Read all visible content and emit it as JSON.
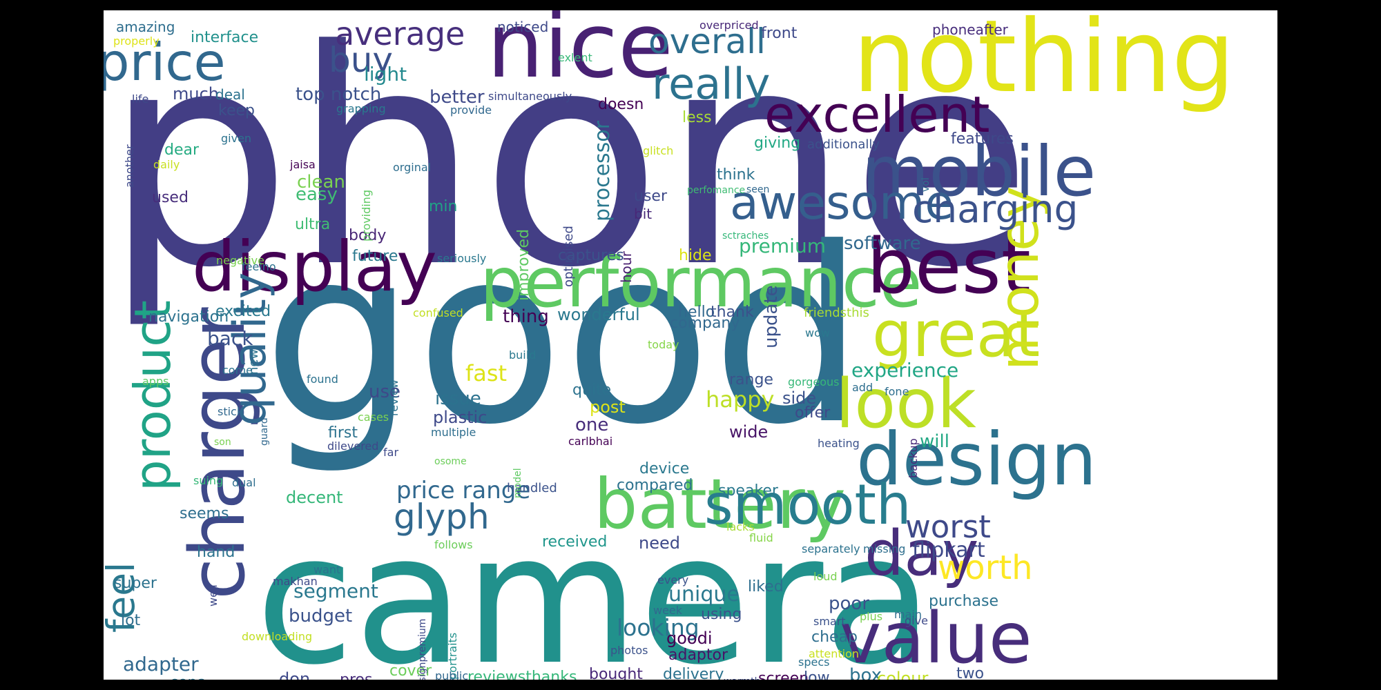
{
  "canvas": {
    "background": "#ffffff",
    "frame": "#000000"
  },
  "words": [
    {
      "text": "phone",
      "color": "#433e85"
    },
    {
      "text": "good",
      "color": "#2e6f8e"
    },
    {
      "text": "camera",
      "color": "#21918c"
    },
    {
      "text": "nothing",
      "color": "#e2e418"
    },
    {
      "text": "nice",
      "color": "#482173"
    },
    {
      "text": "performance",
      "color": "#5ec962"
    },
    {
      "text": "display",
      "color": "#440154"
    },
    {
      "text": "best",
      "color": "#440154"
    },
    {
      "text": "mobile",
      "color": "#3b528b"
    },
    {
      "text": "design",
      "color": "#2c728e"
    },
    {
      "text": "battery",
      "color": "#5ec962"
    },
    {
      "text": "charger",
      "color": "#3e4989"
    },
    {
      "text": "value",
      "color": "#472d7b"
    },
    {
      "text": "great",
      "color": "#c8e020"
    },
    {
      "text": "look",
      "color": "#bddf26"
    },
    {
      "text": "money",
      "color": "#d0e11c"
    },
    {
      "text": "smooth",
      "color": "#287d8e"
    },
    {
      "text": "price",
      "color": "#31688e"
    },
    {
      "text": "excellent",
      "color": "#440154"
    },
    {
      "text": "awesome",
      "color": "#355f8d"
    },
    {
      "text": "charging",
      "color": "#3b528b"
    },
    {
      "text": "quality",
      "color": "#31688e"
    },
    {
      "text": "product",
      "color": "#20a386"
    },
    {
      "text": "day",
      "color": "#472d7b"
    },
    {
      "text": "really",
      "color": "#2c728e"
    },
    {
      "text": "overall",
      "color": "#2e6e8e"
    },
    {
      "text": "average",
      "color": "#472f7d"
    },
    {
      "text": "buy",
      "color": "#3b528b"
    },
    {
      "text": "worth",
      "color": "#fde725"
    },
    {
      "text": "worst",
      "color": "#3e4989"
    },
    {
      "text": "feel",
      "color": "#2a788e"
    },
    {
      "text": "glyph",
      "color": "#31688e"
    },
    {
      "text": "price range",
      "color": "#31688e"
    },
    {
      "text": "flipkart",
      "color": "#3e4989"
    },
    {
      "text": "fast",
      "color": "#dde318"
    },
    {
      "text": "premium",
      "color": "#35b779"
    },
    {
      "text": "processor",
      "color": "#2a788e"
    },
    {
      "text": "experience",
      "color": "#21a685"
    },
    {
      "text": "software",
      "color": "#31688e"
    },
    {
      "text": "happy",
      "color": "#bddf26"
    },
    {
      "text": "update",
      "color": "#3b528b"
    },
    {
      "text": "looking",
      "color": "#2c728e"
    },
    {
      "text": "unique",
      "color": "#2a788e"
    },
    {
      "text": "segment",
      "color": "#2a788e"
    },
    {
      "text": "adapter",
      "color": "#31688e"
    },
    {
      "text": "budget",
      "color": "#3b528b"
    },
    {
      "text": "light",
      "color": "#23898e"
    },
    {
      "text": "top notch",
      "color": "#3b528b"
    },
    {
      "text": "better",
      "color": "#3e4989"
    },
    {
      "text": "much",
      "color": "#3e4989"
    },
    {
      "text": "back",
      "color": "#3b528b"
    },
    {
      "text": "clean",
      "color": "#7ad151"
    },
    {
      "text": "easy",
      "color": "#3fbc73"
    },
    {
      "text": "thing",
      "color": "#440154"
    },
    {
      "text": "wonderful",
      "color": "#2a788e"
    },
    {
      "text": "navigation",
      "color": "#2c728e"
    },
    {
      "text": "excited",
      "color": "#2a788e"
    },
    {
      "text": "use",
      "color": "#3e4989"
    },
    {
      "text": "issue",
      "color": "#2c728e"
    },
    {
      "text": "plastic",
      "color": "#3e4989"
    },
    {
      "text": "one",
      "color": "#472d7b"
    },
    {
      "text": "quite",
      "color": "#2c728e"
    },
    {
      "text": "post",
      "color": "#dde318"
    },
    {
      "text": "first",
      "color": "#2c728e"
    },
    {
      "text": "decent",
      "color": "#35b779"
    },
    {
      "text": "will",
      "color": "#22a884"
    },
    {
      "text": "wide",
      "color": "#481467"
    },
    {
      "text": "side",
      "color": "#3b528b"
    },
    {
      "text": "offer",
      "color": "#3e4989"
    },
    {
      "text": "range",
      "color": "#3b528b"
    },
    {
      "text": "company",
      "color": "#31688e"
    },
    {
      "text": "hello",
      "color": "#31688e"
    },
    {
      "text": "thank",
      "color": "#3b528b"
    },
    {
      "text": "captures",
      "color": "#3b528b"
    },
    {
      "text": "hour",
      "color": "#481f70"
    },
    {
      "text": "future",
      "color": "#2a788e"
    },
    {
      "text": "body",
      "color": "#482575"
    },
    {
      "text": "ultra",
      "color": "#3fbc73"
    },
    {
      "text": "min",
      "color": "#20a386"
    },
    {
      "text": "used",
      "color": "#472d7b"
    },
    {
      "text": "dear",
      "color": "#25ab82"
    },
    {
      "text": "keep",
      "color": "#3b528b"
    },
    {
      "text": "deal",
      "color": "#2c728e"
    },
    {
      "text": "doesn",
      "color": "#440154"
    },
    {
      "text": "less",
      "color": "#a8db34"
    },
    {
      "text": "giving",
      "color": "#22a884"
    },
    {
      "text": "additionally",
      "color": "#3b528b"
    },
    {
      "text": "features",
      "color": "#3e4989"
    },
    {
      "text": "think",
      "color": "#2c728e"
    },
    {
      "text": "user",
      "color": "#3e4989"
    },
    {
      "text": "bit",
      "color": "#482878"
    },
    {
      "text": "improved",
      "color": "#5ec962"
    },
    {
      "text": "optimised",
      "color": "#3e4989"
    },
    {
      "text": "hide",
      "color": "#dde318"
    },
    {
      "text": "received",
      "color": "#1f968b"
    },
    {
      "text": "need",
      "color": "#3e4989"
    },
    {
      "text": "compared",
      "color": "#2c728e"
    },
    {
      "text": "device",
      "color": "#2a788e"
    },
    {
      "text": "speaker",
      "color": "#2a788e"
    },
    {
      "text": "handled",
      "color": "#3b528b"
    },
    {
      "text": "using",
      "color": "#3b528b"
    },
    {
      "text": "poor",
      "color": "#3b528b"
    },
    {
      "text": "purchase",
      "color": "#2c728e"
    },
    {
      "text": "liked",
      "color": "#2e6e8e"
    },
    {
      "text": "goodi",
      "color": "#440154"
    },
    {
      "text": "adaptor",
      "color": "#481467"
    },
    {
      "text": "cheap",
      "color": "#2e6e8e"
    },
    {
      "text": "box",
      "color": "#2c728e"
    },
    {
      "text": "colour",
      "color": "#c2df23"
    },
    {
      "text": "two",
      "color": "#3b528b"
    },
    {
      "text": "screen",
      "color": "#440154"
    },
    {
      "text": "low",
      "color": "#3b528b"
    },
    {
      "text": "delivery",
      "color": "#2c728e"
    },
    {
      "text": "bought",
      "color": "#482878"
    },
    {
      "text": "reviewsthanks",
      "color": "#35b779"
    },
    {
      "text": "cover",
      "color": "#6ccd5a"
    },
    {
      "text": "pros",
      "color": "#472d7b"
    },
    {
      "text": "don",
      "color": "#3e4989"
    },
    {
      "text": "cons",
      "color": "#2c728e"
    },
    {
      "text": "lot",
      "color": "#2e6e8e"
    },
    {
      "text": "super",
      "color": "#2c728e"
    },
    {
      "text": "hand",
      "color": "#2c728e"
    },
    {
      "text": "seems",
      "color": "#2e6e8e"
    },
    {
      "text": "new",
      "color": "#2c728e"
    },
    {
      "text": "amazing",
      "color": "#2e6e8e"
    },
    {
      "text": "interface",
      "color": "#21918c"
    },
    {
      "text": "noticed",
      "color": "#3e4989"
    },
    {
      "text": "overpriced",
      "color": "#482878"
    },
    {
      "text": "front",
      "color": "#3e4989"
    },
    {
      "text": "phoneafter",
      "color": "#472d7b"
    },
    {
      "text": "properly",
      "color": "#dde318"
    },
    {
      "text": "exlent",
      "color": "#37b878"
    },
    {
      "text": "life",
      "color": "#3e4989"
    },
    {
      "text": "simultaneously",
      "color": "#3e4989"
    },
    {
      "text": "grapping",
      "color": "#2a788e"
    },
    {
      "text": "provide",
      "color": "#31688e"
    },
    {
      "text": "given",
      "color": "#2c728e"
    },
    {
      "text": "another",
      "color": "#3e4989"
    },
    {
      "text": "jaisa",
      "color": "#440154"
    },
    {
      "text": "daily",
      "color": "#c8e020"
    },
    {
      "text": "orginal",
      "color": "#2e6e8e"
    },
    {
      "text": "providing",
      "color": "#5ec962"
    },
    {
      "text": "glitch",
      "color": "#c8e020"
    },
    {
      "text": "perfomance",
      "color": "#3fbc73"
    },
    {
      "text": "seen",
      "color": "#31688e"
    },
    {
      "text": "vol",
      "color": "#2e6e8e"
    },
    {
      "text": "feelno",
      "color": "#2c728e"
    },
    {
      "text": "negative",
      "color": "#7ad151"
    },
    {
      "text": "seriously",
      "color": "#2a788e"
    },
    {
      "text": "sctraches",
      "color": "#35b779"
    },
    {
      "text": "friendsthis",
      "color": "#a8db34"
    },
    {
      "text": "wow",
      "color": "#2a788e"
    },
    {
      "text": "confused",
      "color": "#c2df23"
    },
    {
      "text": "today",
      "color": "#86d549"
    },
    {
      "text": "build",
      "color": "#2a788e"
    },
    {
      "text": "review",
      "color": "#2c728e"
    },
    {
      "text": "apps",
      "color": "#5ec962"
    },
    {
      "text": "come",
      "color": "#2c728e"
    },
    {
      "text": "found",
      "color": "#2c728e"
    },
    {
      "text": "stick",
      "color": "#31688e"
    },
    {
      "text": "guard",
      "color": "#31688e"
    },
    {
      "text": "cases",
      "color": "#7ad151"
    },
    {
      "text": "multiple",
      "color": "#2e6e8e"
    },
    {
      "text": "dilevered",
      "color": "#3e4989"
    },
    {
      "text": "far",
      "color": "#3e4989"
    },
    {
      "text": "carlbhai",
      "color": "#440154"
    },
    {
      "text": "gorgeous",
      "color": "#37b878"
    },
    {
      "text": "add",
      "color": "#2e6e8e"
    },
    {
      "text": "fone",
      "color": "#2e6e8e"
    },
    {
      "text": "backup",
      "color": "#482878"
    },
    {
      "text": "heating",
      "color": "#3b528b"
    },
    {
      "text": "son",
      "color": "#7ad151"
    },
    {
      "text": "suing",
      "color": "#37b878"
    },
    {
      "text": "dual",
      "color": "#2e6e8e"
    },
    {
      "text": "model",
      "color": "#5ec962"
    },
    {
      "text": "osome",
      "color": "#6ccd5a"
    },
    {
      "text": "follows",
      "color": "#6ccd5a"
    },
    {
      "text": "lacks",
      "color": "#a8db34"
    },
    {
      "text": "fluid",
      "color": "#86d549"
    },
    {
      "text": "separately",
      "color": "#2c728e"
    },
    {
      "text": "missing",
      "color": "#2e6e8e"
    },
    {
      "text": "want",
      "color": "#2c728e"
    },
    {
      "text": "well",
      "color": "#3e4989"
    },
    {
      "text": "makhan",
      "color": "#3e4989"
    },
    {
      "text": "designpremium",
      "color": "#3e4989"
    },
    {
      "text": "portraits",
      "color": "#21918c"
    },
    {
      "text": "every",
      "color": "#3b528b"
    },
    {
      "text": "loud",
      "color": "#7ad151"
    },
    {
      "text": "week",
      "color": "#31688e"
    },
    {
      "text": "smart",
      "color": "#3b528b"
    },
    {
      "text": "plus",
      "color": "#7ad151"
    },
    {
      "text": "main",
      "color": "#2e6e8e"
    },
    {
      "text": "give",
      "color": "#3e4989"
    },
    {
      "text": "downloading",
      "color": "#c2df23"
    },
    {
      "text": "photos",
      "color": "#3b528b"
    },
    {
      "text": "public",
      "color": "#31688e"
    },
    {
      "text": "attention",
      "color": "#c8e020"
    },
    {
      "text": "specs",
      "color": "#2c728e"
    },
    {
      "text": "warmth",
      "color": "#3e4989"
    }
  ]
}
